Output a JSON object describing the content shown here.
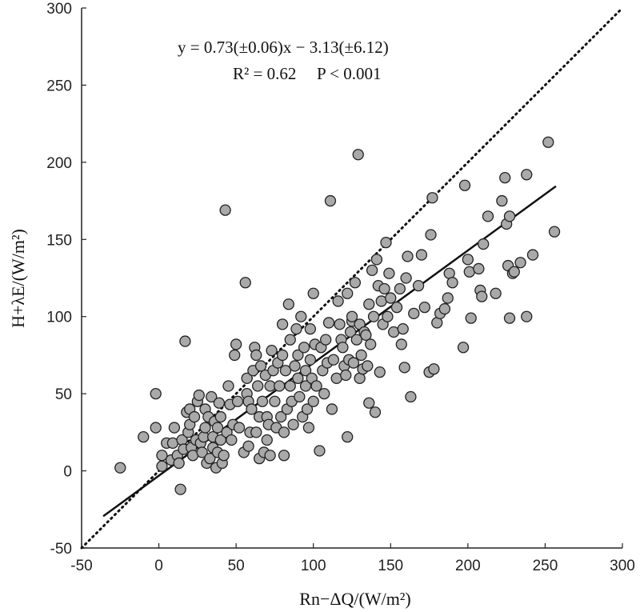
{
  "chart_data": {
    "type": "scatter",
    "title": "",
    "xlabel": "Rn−ΔQ/(W/m²)",
    "ylabel": "H+λE/(W/m²)",
    "xlim": [
      -50,
      300
    ],
    "ylim": [
      -50,
      300
    ],
    "xticks": [
      "-50",
      "0",
      "50",
      "100",
      "150",
      "200",
      "250",
      "300"
    ],
    "yticks": [
      "-50",
      "0",
      "50",
      "100",
      "150",
      "200",
      "250",
      "300"
    ],
    "grid": false,
    "marker_color": "#a9a9a9",
    "marker_edge_color": "#222222",
    "regression": {
      "slope": 0.73,
      "intercept": -3.13,
      "x_range": [
        -36,
        257
      ],
      "equation_text": "y = 0.73(±0.06)x − 3.13(±6.12)",
      "r2_text": "R² = 0.62",
      "p_text": "P < 0.001"
    },
    "one_to_one_line": {
      "from": [
        -50,
        -50
      ],
      "to": [
        300,
        300
      ],
      "style": "dotted"
    },
    "points": [
      [
        -25,
        2
      ],
      [
        -10,
        22
      ],
      [
        -2,
        50
      ],
      [
        -2,
        28
      ],
      [
        2,
        10
      ],
      [
        2,
        3
      ],
      [
        5,
        18
      ],
      [
        8,
        7
      ],
      [
        9,
        18
      ],
      [
        10,
        28
      ],
      [
        12,
        10
      ],
      [
        13,
        5
      ],
      [
        14,
        -12
      ],
      [
        15,
        20
      ],
      [
        16,
        14
      ],
      [
        17,
        84
      ],
      [
        18,
        38
      ],
      [
        19,
        25
      ],
      [
        20,
        40
      ],
      [
        20,
        30
      ],
      [
        21,
        15
      ],
      [
        22,
        10
      ],
      [
        23,
        35
      ],
      [
        24,
        20
      ],
      [
        25,
        45
      ],
      [
        26,
        49
      ],
      [
        27,
        18
      ],
      [
        28,
        12
      ],
      [
        29,
        22
      ],
      [
        30,
        40
      ],
      [
        30,
        28
      ],
      [
        31,
        5
      ],
      [
        32,
        35
      ],
      [
        33,
        8
      ],
      [
        34,
        48
      ],
      [
        35,
        22
      ],
      [
        35,
        15
      ],
      [
        36,
        32
      ],
      [
        37,
        2
      ],
      [
        38,
        28
      ],
      [
        38,
        12
      ],
      [
        39,
        44
      ],
      [
        40,
        35
      ],
      [
        40,
        20
      ],
      [
        41,
        5
      ],
      [
        42,
        10
      ],
      [
        43,
        169
      ],
      [
        44,
        25
      ],
      [
        45,
        55
      ],
      [
        46,
        43
      ],
      [
        47,
        20
      ],
      [
        48,
        30
      ],
      [
        49,
        75
      ],
      [
        50,
        82
      ],
      [
        51,
        45
      ],
      [
        52,
        28
      ],
      [
        55,
        12
      ],
      [
        56,
        122
      ],
      [
        57,
        60
      ],
      [
        57,
        50
      ],
      [
        58,
        45
      ],
      [
        58,
        16
      ],
      [
        59,
        25
      ],
      [
        60,
        40
      ],
      [
        61,
        65
      ],
      [
        62,
        80
      ],
      [
        63,
        75
      ],
      [
        63,
        25
      ],
      [
        64,
        55
      ],
      [
        65,
        35
      ],
      [
        65,
        8
      ],
      [
        66,
        68
      ],
      [
        67,
        45
      ],
      [
        68,
        12
      ],
      [
        69,
        62
      ],
      [
        70,
        35
      ],
      [
        70,
        20
      ],
      [
        71,
        30
      ],
      [
        72,
        55
      ],
      [
        72,
        10
      ],
      [
        73,
        78
      ],
      [
        74,
        65
      ],
      [
        75,
        45
      ],
      [
        76,
        28
      ],
      [
        77,
        70
      ],
      [
        78,
        55
      ],
      [
        79,
        35
      ],
      [
        80,
        95
      ],
      [
        80,
        75
      ],
      [
        81,
        25
      ],
      [
        81,
        10
      ],
      [
        82,
        65
      ],
      [
        83,
        40
      ],
      [
        84,
        108
      ],
      [
        85,
        85
      ],
      [
        85,
        55
      ],
      [
        86,
        45
      ],
      [
        87,
        30
      ],
      [
        88,
        68
      ],
      [
        89,
        92
      ],
      [
        90,
        75
      ],
      [
        90,
        60
      ],
      [
        91,
        48
      ],
      [
        92,
        100
      ],
      [
        93,
        35
      ],
      [
        94,
        80
      ],
      [
        95,
        65
      ],
      [
        95,
        55
      ],
      [
        96,
        40
      ],
      [
        97,
        28
      ],
      [
        98,
        92
      ],
      [
        98,
        72
      ],
      [
        99,
        60
      ],
      [
        100,
        45
      ],
      [
        100,
        115
      ],
      [
        101,
        82
      ],
      [
        102,
        55
      ],
      [
        104,
        13
      ],
      [
        105,
        80
      ],
      [
        106,
        65
      ],
      [
        107,
        50
      ],
      [
        108,
        85
      ],
      [
        109,
        70
      ],
      [
        110,
        96
      ],
      [
        111,
        175
      ],
      [
        112,
        40
      ],
      [
        113,
        72
      ],
      [
        115,
        60
      ],
      [
        116,
        110
      ],
      [
        117,
        95
      ],
      [
        118,
        85
      ],
      [
        119,
        80
      ],
      [
        120,
        68
      ],
      [
        121,
        62
      ],
      [
        122,
        22
      ],
      [
        122,
        115
      ],
      [
        123,
        72
      ],
      [
        124,
        90
      ],
      [
        125,
        97
      ],
      [
        125,
        100
      ],
      [
        126,
        70
      ],
      [
        127,
        122
      ],
      [
        128,
        85
      ],
      [
        129,
        205
      ],
      [
        130,
        60
      ],
      [
        130,
        95
      ],
      [
        131,
        75
      ],
      [
        132,
        66
      ],
      [
        133,
        90
      ],
      [
        134,
        88
      ],
      [
        135,
        68
      ],
      [
        136,
        44
      ],
      [
        136,
        108
      ],
      [
        137,
        82
      ],
      [
        138,
        130
      ],
      [
        139,
        100
      ],
      [
        140,
        38
      ],
      [
        141,
        137
      ],
      [
        142,
        120
      ],
      [
        143,
        64
      ],
      [
        144,
        110
      ],
      [
        145,
        95
      ],
      [
        146,
        118
      ],
      [
        147,
        148
      ],
      [
        148,
        100
      ],
      [
        149,
        128
      ],
      [
        150,
        112
      ],
      [
        152,
        90
      ],
      [
        154,
        106
      ],
      [
        156,
        118
      ],
      [
        157,
        82
      ],
      [
        158,
        92
      ],
      [
        159,
        67
      ],
      [
        160,
        125
      ],
      [
        161,
        139
      ],
      [
        163,
        48
      ],
      [
        165,
        102
      ],
      [
        168,
        120
      ],
      [
        170,
        140
      ],
      [
        172,
        106
      ],
      [
        175,
        64
      ],
      [
        176,
        153
      ],
      [
        177,
        177
      ],
      [
        178,
        66
      ],
      [
        180,
        96
      ],
      [
        182,
        102
      ],
      [
        185,
        105
      ],
      [
        187,
        112
      ],
      [
        188,
        128
      ],
      [
        190,
        122
      ],
      [
        197,
        80
      ],
      [
        198,
        185
      ],
      [
        200,
        137
      ],
      [
        201,
        129
      ],
      [
        202,
        99
      ],
      [
        207,
        131
      ],
      [
        208,
        117
      ],
      [
        209,
        113
      ],
      [
        210,
        147
      ],
      [
        213,
        165
      ],
      [
        218,
        115
      ],
      [
        222,
        175
      ],
      [
        224,
        190
      ],
      [
        225,
        160
      ],
      [
        226,
        133
      ],
      [
        227,
        99
      ],
      [
        227,
        165
      ],
      [
        229,
        128
      ],
      [
        230,
        129
      ],
      [
        234,
        135
      ],
      [
        238,
        192
      ],
      [
        238,
        100
      ],
      [
        242,
        140
      ],
      [
        252,
        213
      ],
      [
        256,
        155
      ]
    ]
  }
}
